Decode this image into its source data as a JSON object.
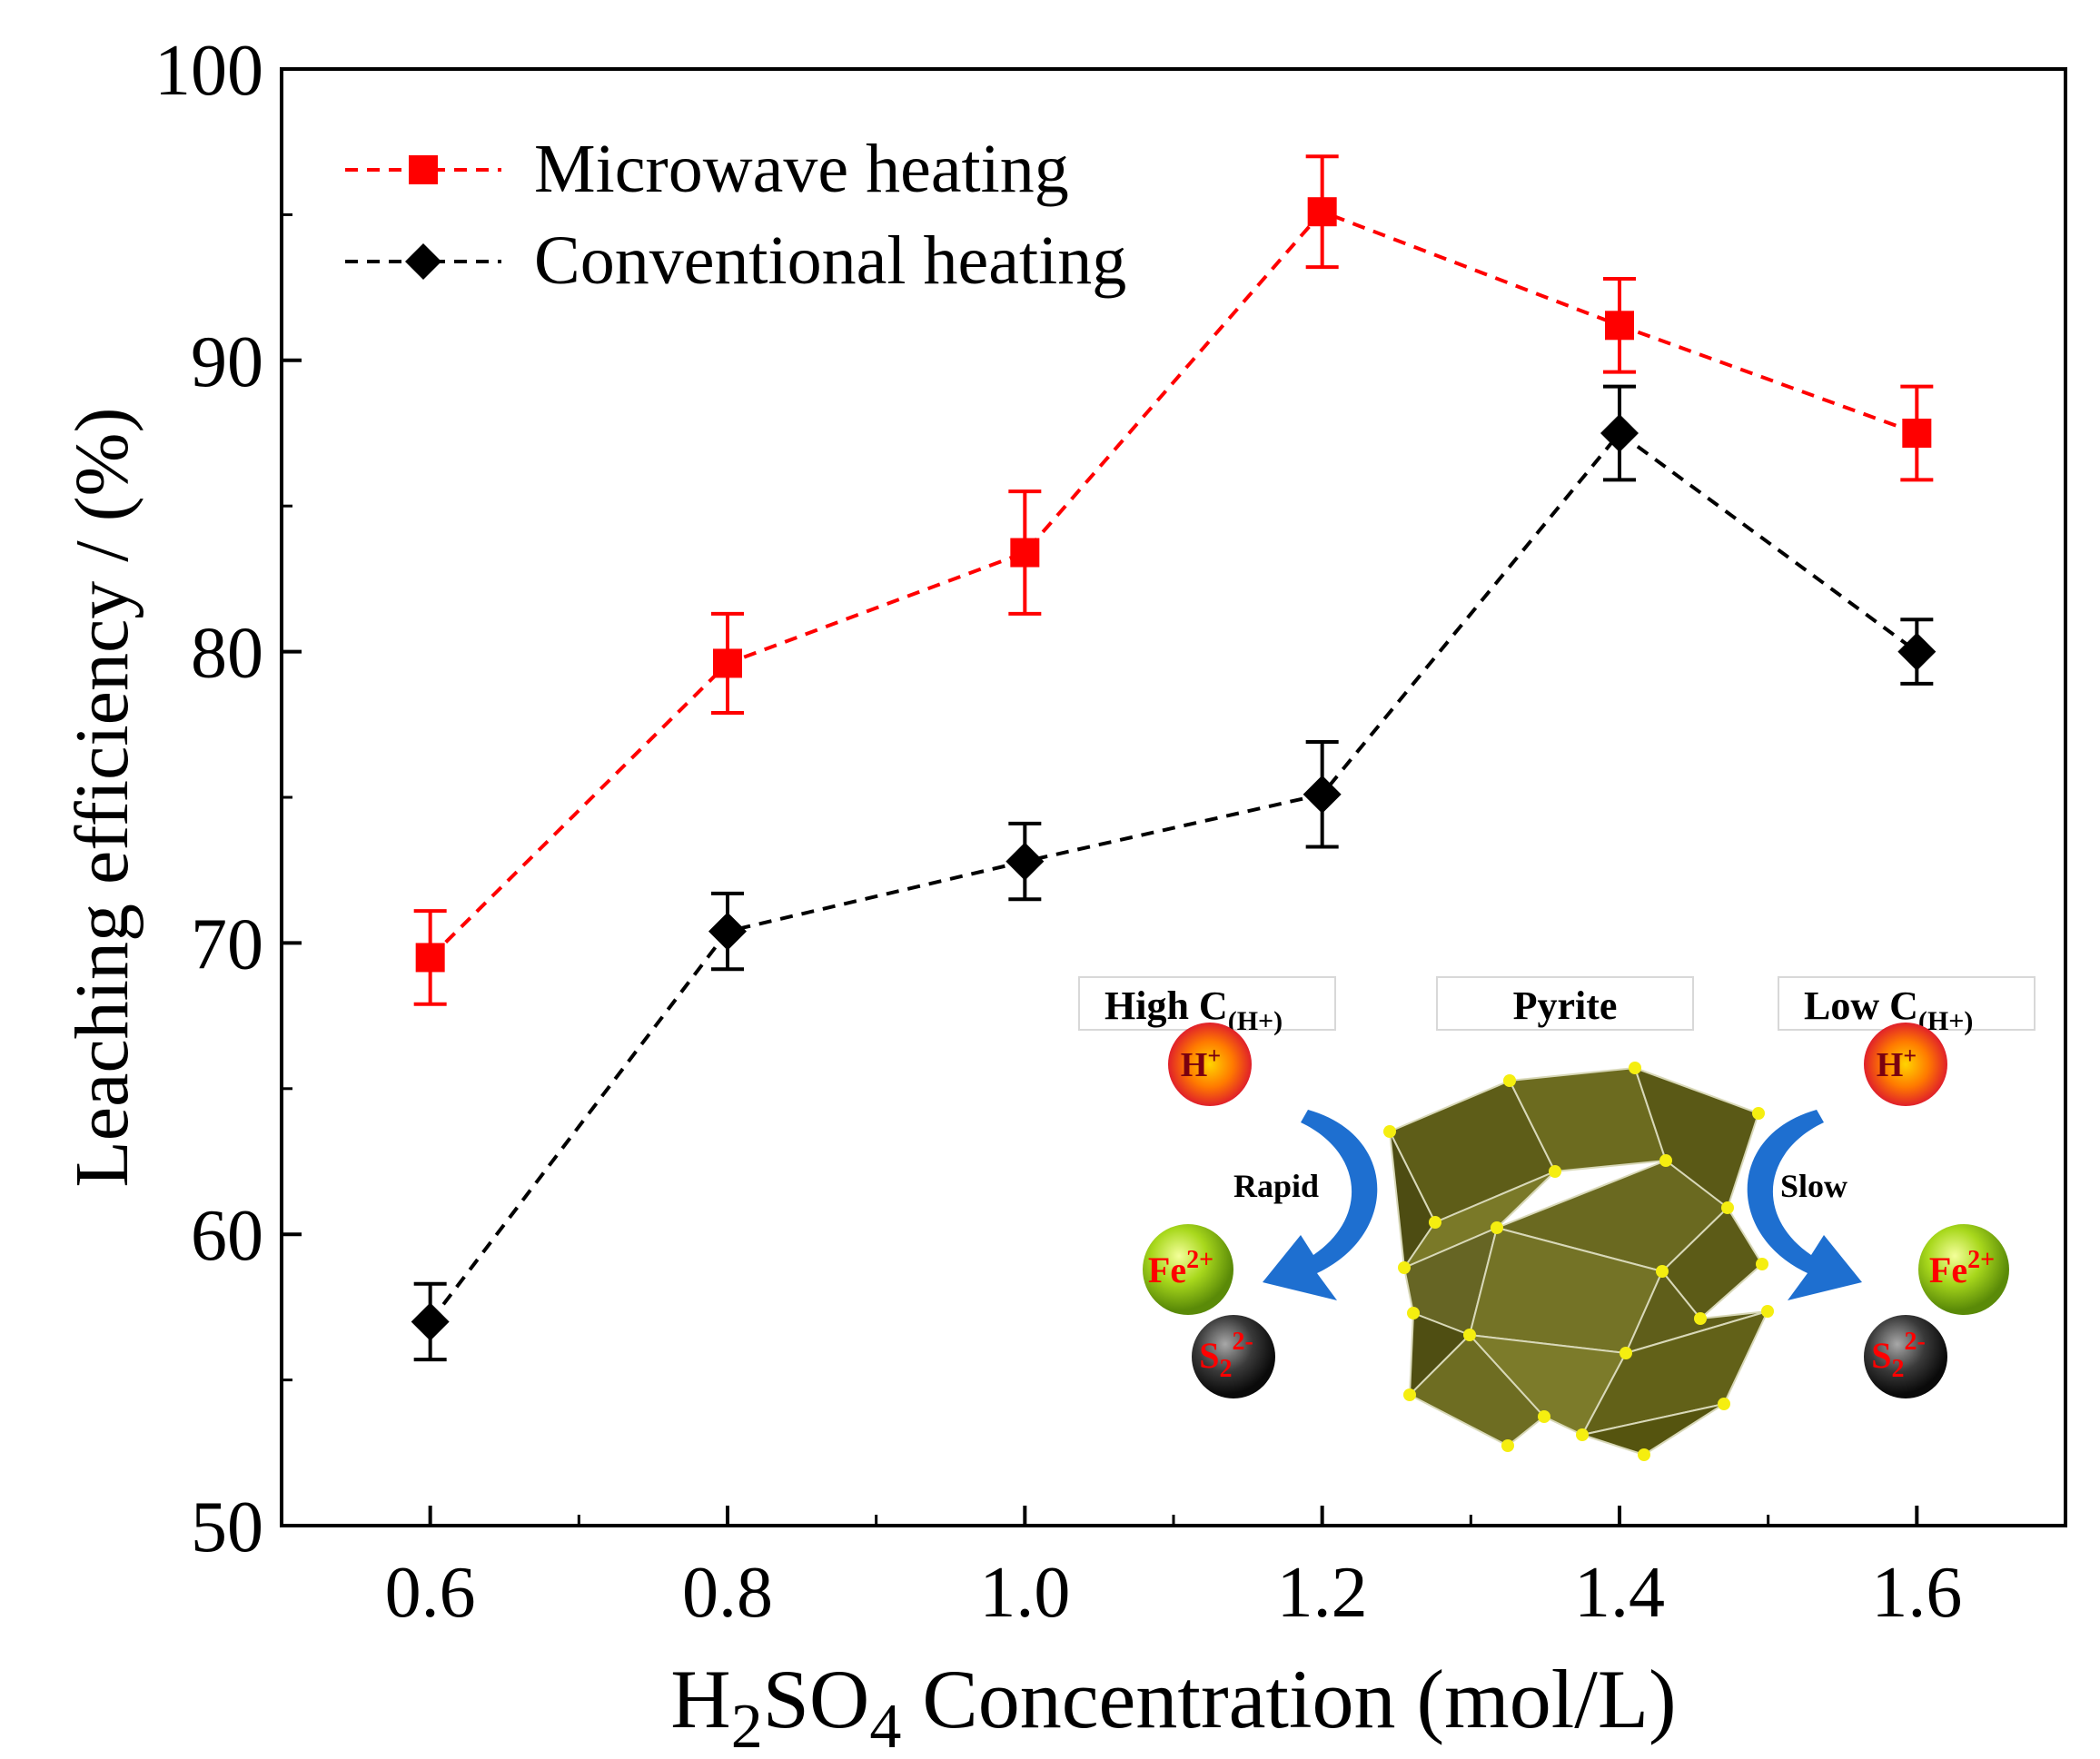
{
  "chart_data": {
    "type": "line",
    "title": "",
    "xlabel_prefix": "H",
    "xlabel_sub1": "2",
    "xlabel_mid": "SO",
    "xlabel_sub2": "4",
    "xlabel_suffix": " Concentration (mol/L)",
    "ylabel": "Leaching efficiency / (%)",
    "xlim": [
      0.5,
      1.7
    ],
    "ylim": [
      50,
      100
    ],
    "x": [
      0.6,
      0.8,
      1.0,
      1.2,
      1.4,
      1.6
    ],
    "x_tick_labels": [
      "0.6",
      "0.8",
      "1.0",
      "1.2",
      "1.4",
      "1.6"
    ],
    "y_ticks": [
      50,
      60,
      70,
      80,
      90,
      100
    ],
    "y_tick_labels": [
      "50",
      "60",
      "70",
      "80",
      "90",
      "100"
    ],
    "legend_position": "top-left",
    "series": [
      {
        "name": "Microwave heating",
        "color": "#ff0000",
        "marker": "square",
        "values": [
          69.5,
          79.6,
          83.4,
          95.1,
          91.2,
          87.5
        ],
        "errors": [
          1.6,
          1.7,
          2.1,
          1.9,
          1.6,
          1.6
        ]
      },
      {
        "name": "Conventional heating",
        "color": "#000000",
        "marker": "diamond",
        "values": [
          57.0,
          70.4,
          72.8,
          75.1,
          87.5,
          80.0
        ],
        "errors": [
          1.3,
          1.3,
          1.3,
          1.8,
          1.6,
          1.1
        ]
      }
    ],
    "inset": {
      "label_high": "High C",
      "label_high_sub": "(H+)",
      "label_crystal": "Pyrite",
      "label_low": "Low C",
      "label_low_sub": "(H+)",
      "ion_h": "H",
      "ion_h_sup": "+",
      "ion_fe": "Fe",
      "ion_fe_sup": "2+",
      "ion_s": "S",
      "ion_s_sub": "2",
      "ion_s_sup": "2-",
      "arrow_left_label": "Rapid",
      "arrow_right_label": "Slow",
      "arrow_color": "#1e6fd0",
      "crystal_color": "#6b6a1e"
    }
  }
}
